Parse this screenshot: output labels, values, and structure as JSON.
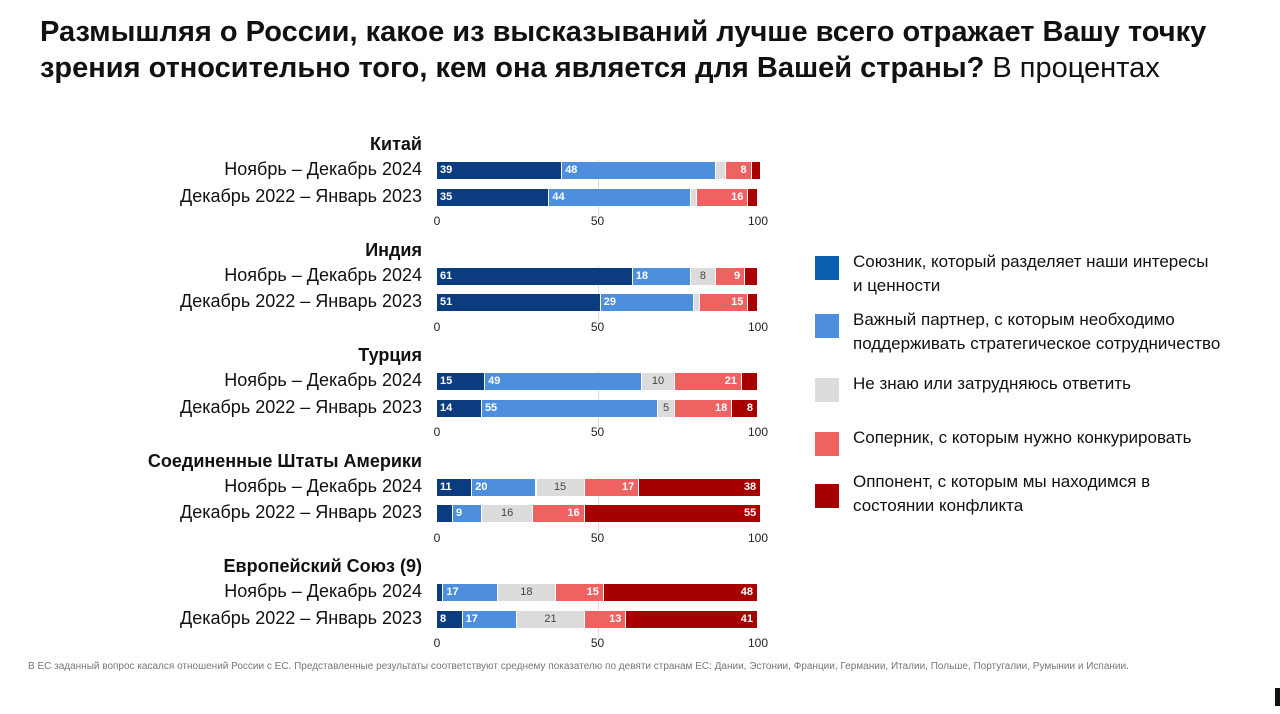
{
  "title_bold": "Размышляя о России, какое из высказываний лучше всего отражает Вашу точку зрения относительно того, кем она является для Вашей страны?",
  "title_regular": " В процентах",
  "chart_data": {
    "type": "bar",
    "orientation": "horizontal-stacked",
    "xlim": [
      0,
      100
    ],
    "xticks": [
      "0",
      "50",
      "100"
    ],
    "grid": "vertical at 50",
    "legend_placement": "right",
    "series": [
      {
        "name": "Союзник, который разделяет наши интересы и ценности",
        "color": "#0b3c80",
        "legend_color": "#0a5fb0"
      },
      {
        "name": "Важный партнер, с которым необходимо поддерживать стратегическое сотрудничество",
        "color": "#4d8fdd",
        "legend_color": "#4d8fdd"
      },
      {
        "name": "Не знаю или затрудняюсь ответить",
        "color": "#dcdcdc",
        "legend_color": "#dcdcdc"
      },
      {
        "name": "Соперник, с которым нужно конкурировать",
        "color": "#ee6262",
        "legend_color": "#ee6262"
      },
      {
        "name": "Оппонент, с которым мы находимся в состоянии конфликта",
        "color": "#a80000",
        "legend_color": "#a80000"
      }
    ],
    "groups": [
      {
        "title": "Китай",
        "rows": [
          {
            "label": "Ноябрь – Декабрь 2024",
            "values": [
              39,
              48,
              3,
              8,
              3
            ],
            "labels": [
              "39",
              "48",
              "",
              "8",
              ""
            ]
          },
          {
            "label": "Декабрь 2022 – Январь 2023",
            "values": [
              35,
              44,
              2,
              16,
              3
            ],
            "labels": [
              "35",
              "44",
              "",
              "16",
              ""
            ]
          }
        ]
      },
      {
        "title": "Индия",
        "rows": [
          {
            "label": "Ноябрь – Декабрь 2024",
            "values": [
              61,
              18,
              8,
              9,
              4
            ],
            "labels": [
              "61",
              "18",
              "8",
              "9",
              ""
            ]
          },
          {
            "label": "Декабрь 2022 – Январь 2023",
            "values": [
              51,
              29,
              2,
              15,
              3
            ],
            "labels": [
              "51",
              "29",
              "",
              "15",
              ""
            ]
          }
        ]
      },
      {
        "title": "Турция",
        "rows": [
          {
            "label": "Ноябрь – Декабрь 2024",
            "values": [
              15,
              49,
              10,
              21,
              5
            ],
            "labels": [
              "15",
              "49",
              "10",
              "21",
              ""
            ]
          },
          {
            "label": "Декабрь 2022 – Январь 2023",
            "values": [
              14,
              55,
              5,
              18,
              8
            ],
            "labels": [
              "14",
              "55",
              "5",
              "18",
              "8"
            ]
          }
        ]
      },
      {
        "title": "Соединенные Штаты Америки",
        "rows": [
          {
            "label": "Ноябрь – Декабрь 2024",
            "values": [
              11,
              20,
              15,
              17,
              38
            ],
            "labels": [
              "11",
              "20",
              "15",
              "17",
              "38"
            ]
          },
          {
            "label": "Декабрь 2022 – Январь 2023",
            "values": [
              5,
              9,
              16,
              16,
              55
            ],
            "labels": [
              "",
              "9",
              "16",
              "16",
              "55"
            ]
          }
        ]
      },
      {
        "title": "Европейский Союз (9)",
        "rows": [
          {
            "label": "Ноябрь – Декабрь 2024",
            "values": [
              2,
              17,
              18,
              15,
              48
            ],
            "labels": [
              "",
              "17",
              "18",
              "15",
              "48"
            ]
          },
          {
            "label": "Декабрь 2022 – Январь 2023",
            "values": [
              8,
              17,
              21,
              13,
              41
            ],
            "labels": [
              "8",
              "17",
              "21",
              "13",
              "41"
            ]
          }
        ]
      }
    ]
  },
  "footnote": "В ЕС заданный вопрос касался отношений России с ЕС. Представленные результаты соответствуют среднему показателю по девяти странам ЕС: Дании, Эстонии, Франции, Германии, Италии, Польше, Португалии, Румынии и Испании."
}
